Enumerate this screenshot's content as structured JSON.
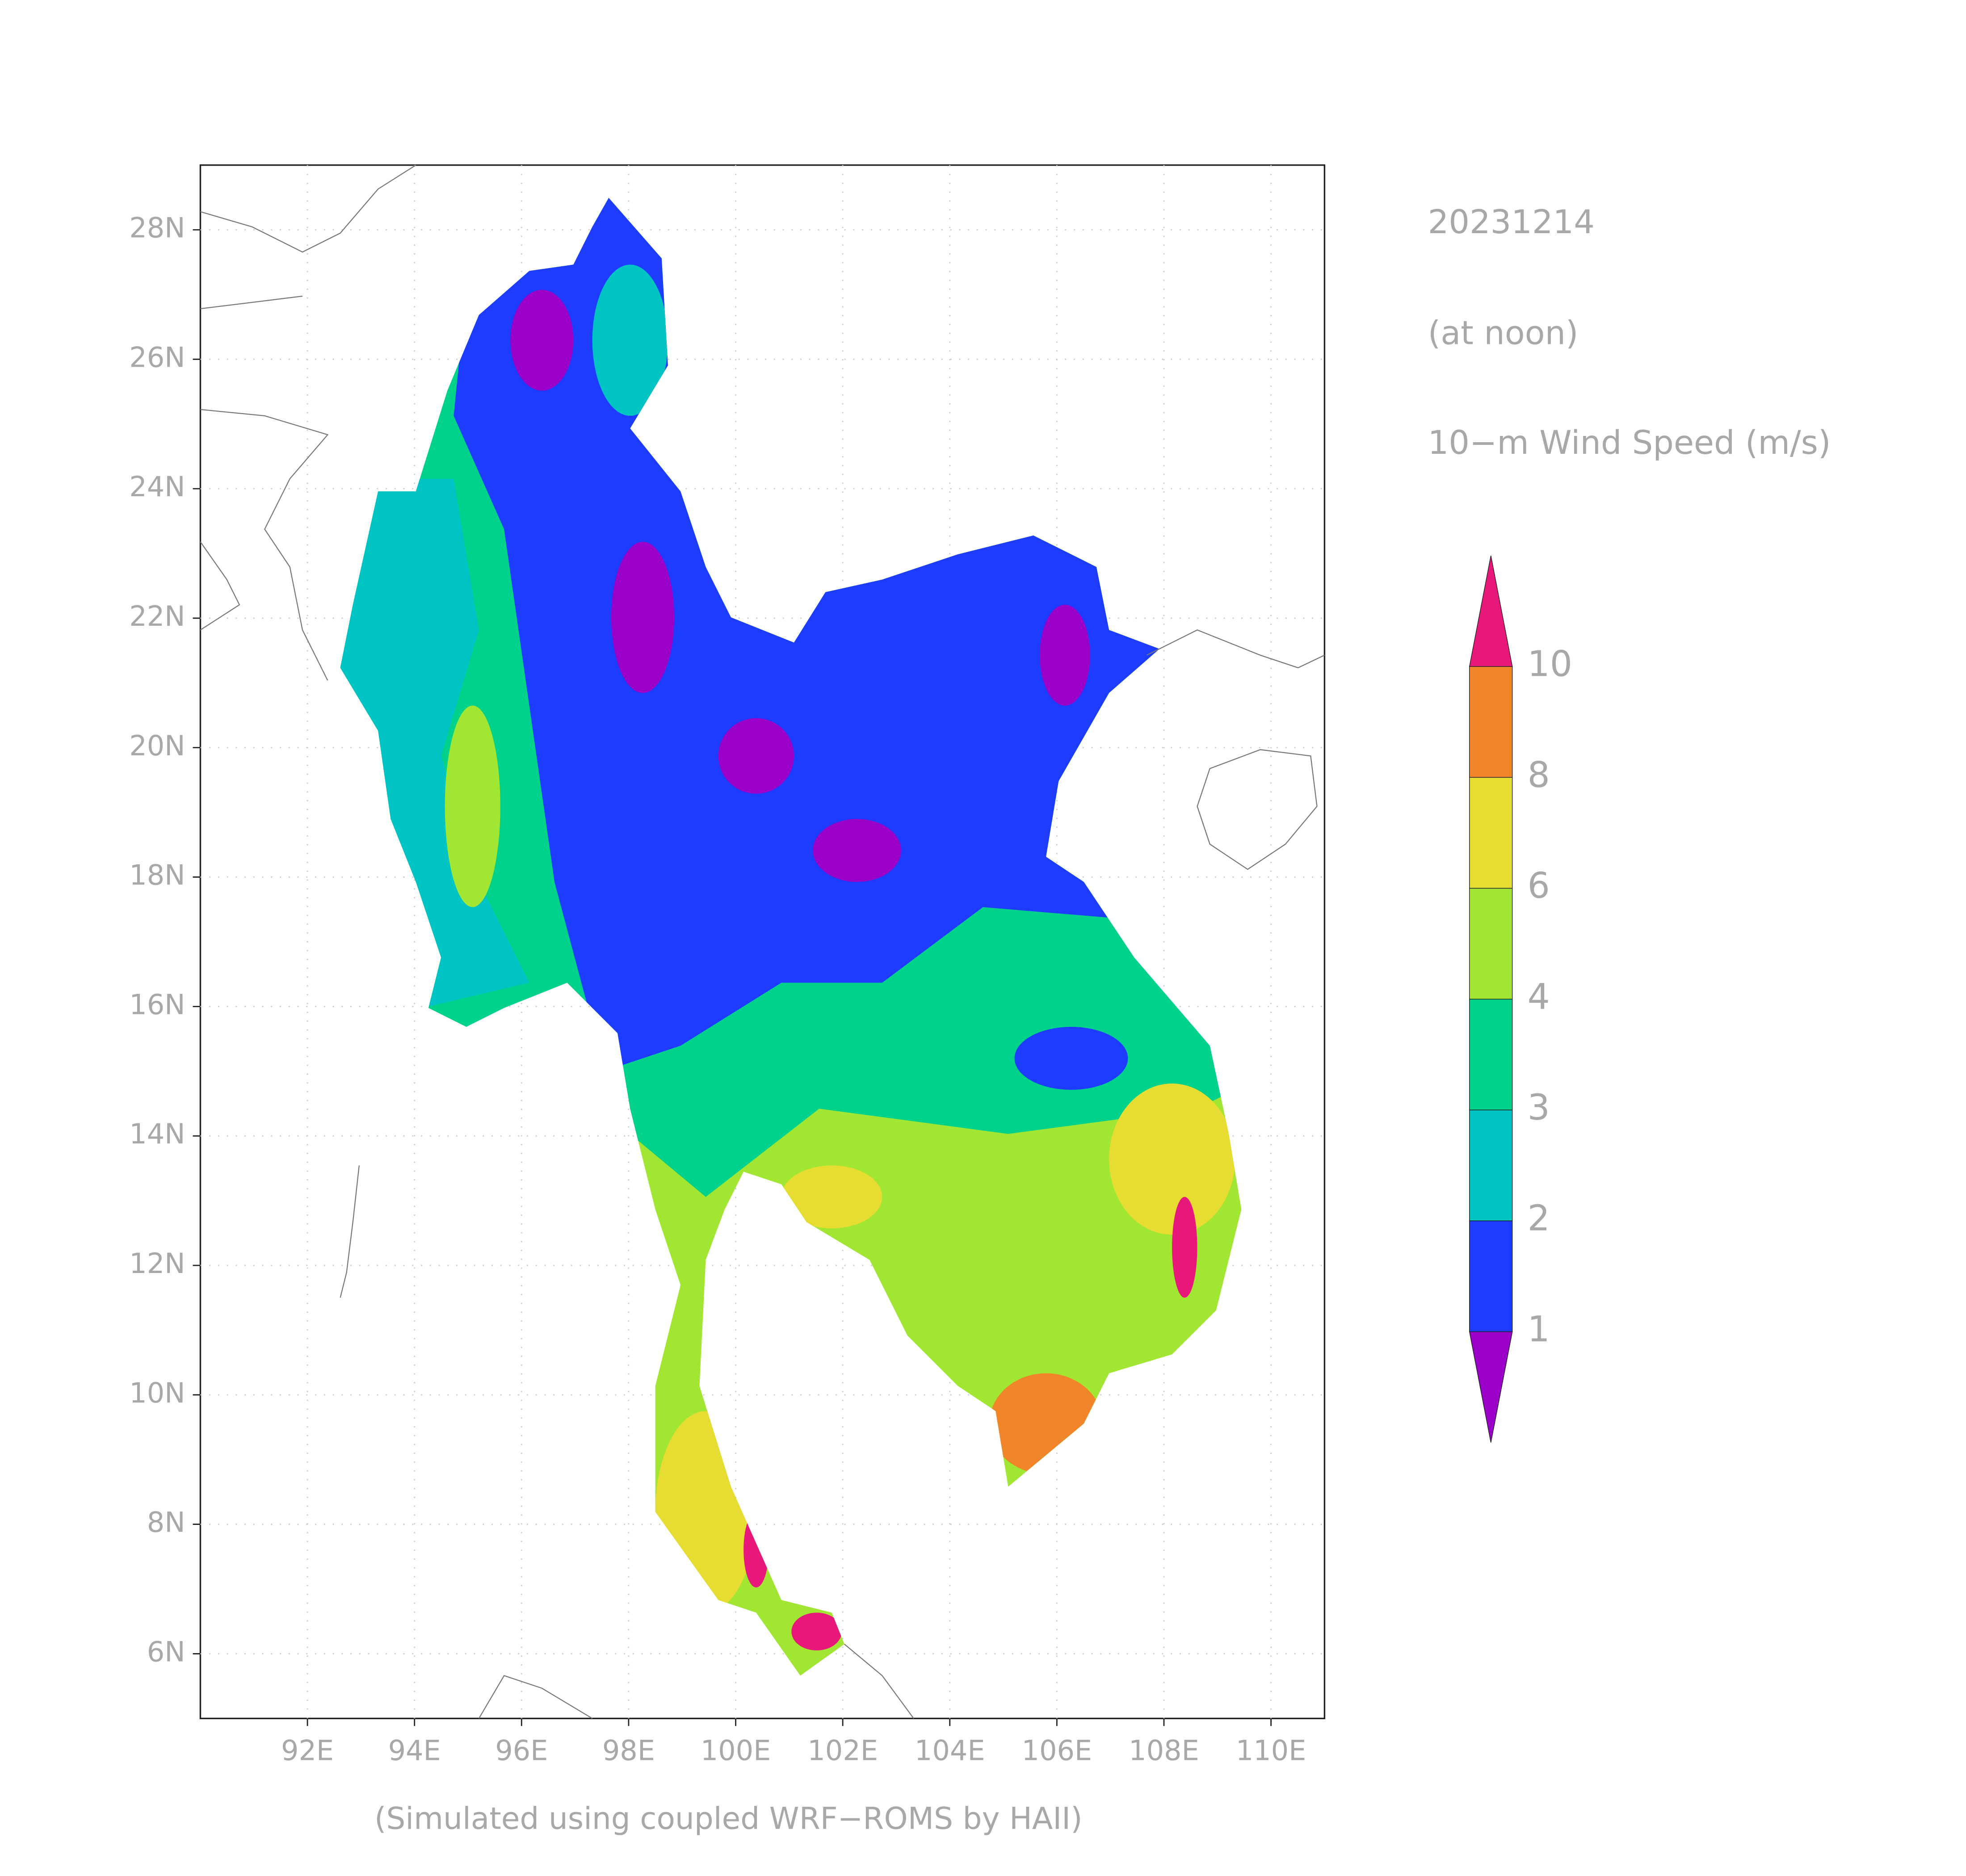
{
  "header": {
    "date": "20231214",
    "time": "(at noon)",
    "variable": "10−m Wind Speed (m/s)"
  },
  "footer": "(Simulated using coupled WRF−ROMS by HAII)",
  "map": {
    "xlim": [
      90,
      111
    ],
    "ylim": [
      5,
      29
    ],
    "xticks": [
      {
        "value": 92,
        "label": "92E"
      },
      {
        "value": 94,
        "label": "94E"
      },
      {
        "value": 96,
        "label": "96E"
      },
      {
        "value": 98,
        "label": "98E"
      },
      {
        "value": 100,
        "label": "100E"
      },
      {
        "value": 102,
        "label": "102E"
      },
      {
        "value": 104,
        "label": "104E"
      },
      {
        "value": 106,
        "label": "106E"
      },
      {
        "value": 108,
        "label": "108E"
      },
      {
        "value": 110,
        "label": "110E"
      }
    ],
    "yticks": [
      {
        "value": 6,
        "label": "6N"
      },
      {
        "value": 8,
        "label": "8N"
      },
      {
        "value": 10,
        "label": "10N"
      },
      {
        "value": 12,
        "label": "12N"
      },
      {
        "value": 14,
        "label": "14N"
      },
      {
        "value": 16,
        "label": "16N"
      },
      {
        "value": 18,
        "label": "18N"
      },
      {
        "value": 20,
        "label": "20N"
      },
      {
        "value": 22,
        "label": "22N"
      },
      {
        "value": 24,
        "label": "24N"
      },
      {
        "value": 26,
        "label": "26N"
      },
      {
        "value": 28,
        "label": "28N"
      }
    ],
    "grid": true
  },
  "colorbar": {
    "levels": [
      1,
      2,
      3,
      4,
      6,
      8,
      10
    ],
    "colors": [
      "#9b00c8",
      "#1e3cff",
      "#00c3c3",
      "#00d28c",
      "#a0e632",
      "#e6dc32",
      "#f0852a",
      "#e8187a"
    ]
  }
}
